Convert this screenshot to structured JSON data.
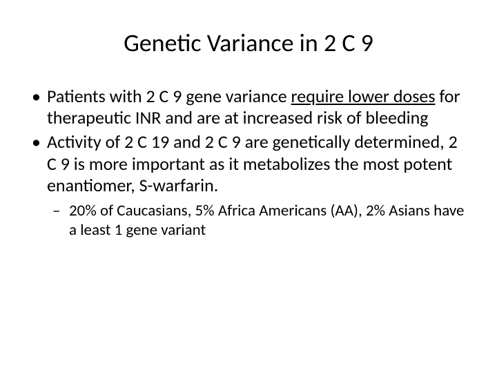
{
  "title": "Genetic Variance in 2 C 9",
  "bullets": [
    {
      "pre": "Patients with 2 C 9 gene variance ",
      "underlined": "require lower doses",
      "post": " for therapeutic INR and are at increased risk of bleeding"
    },
    {
      "text": "Activity of 2 C 19 and 2 C 9 are genetically determined, 2 C 9 is more important as it metabolizes the most potent enantiomer, S-warfarin."
    }
  ],
  "sub_bullets": [
    {
      "text": "20% of Caucasians, 5% Africa Americans (AA), 2% Asians have a least 1 gene variant"
    }
  ],
  "style": {
    "background_color": "#ffffff",
    "text_color": "#000000",
    "title_fontsize": 36,
    "bullet_fontsize": 26,
    "sub_bullet_fontsize": 23,
    "font_family": "Calibri"
  }
}
